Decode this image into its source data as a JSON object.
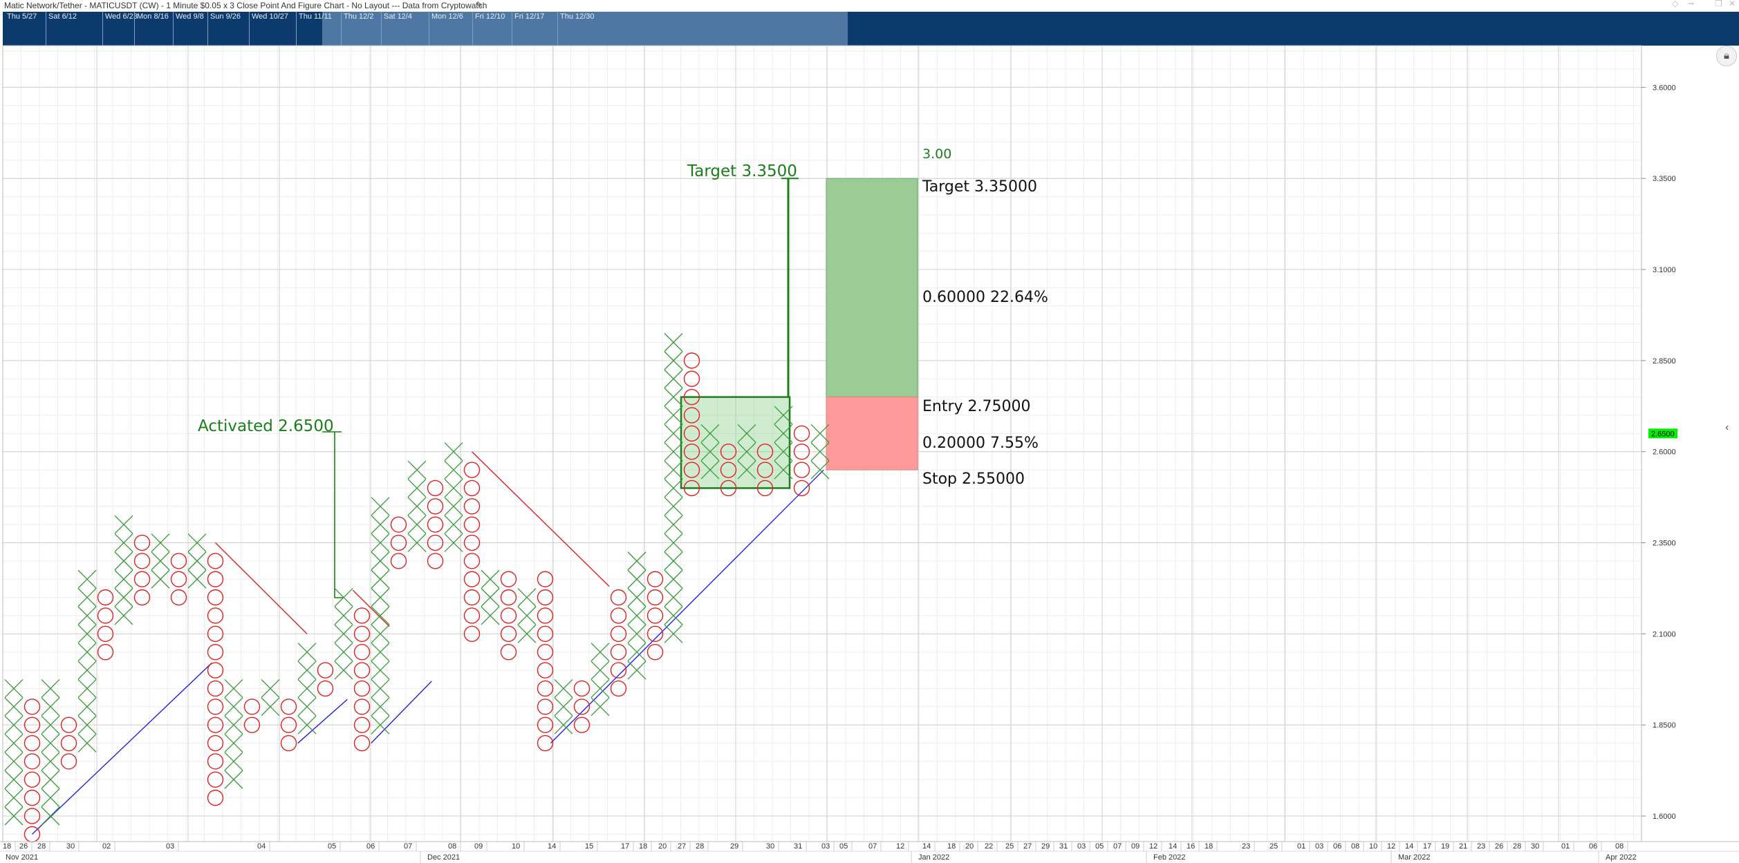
{
  "window": {
    "title": "Matic Network/Tether - MATICUSDT (CW) - 1 Minute $0.05 x 3 Close Point And Figure Chart - No Layout --- Data from Cryptowatch"
  },
  "navigator": {
    "dates": [
      "Thu 5/27",
      "Sat 6/12",
      "Wed 6/23",
      "Mon 8/16",
      "Wed 9/8",
      "Sun 9/26",
      "Wed 10/27",
      "Thu 11/11",
      "Thu 12/2",
      "Sat 12/4",
      "Mon 12/6",
      "Fri 12/10",
      "Fri 12/17",
      "Thu 12/30"
    ]
  },
  "colors": {
    "x_box": "#3a9a3a",
    "o_box": "#e02020",
    "resistance_line": "#e02020",
    "support_line": "#2020e0",
    "target_zone": "#9ccc95",
    "stop_zone": "#ff9a9a",
    "annotation": "#1a7f1a",
    "current_price_bg": "#00ee00",
    "nav_bg": "#0d3a6d",
    "nav_selection": "#4e78a3"
  },
  "chart_data": {
    "type": "point-and-figure",
    "box_size": 0.05,
    "reversal": 3,
    "ylim": [
      1.55,
      3.7
    ],
    "y_ticks": [
      "1.6000",
      "1.8500",
      "2.1000",
      "2.3500",
      "2.6000",
      "2.8500",
      "3.1000",
      "3.3500",
      "3.6000"
    ],
    "current_price": "2.6500",
    "columns": [
      {
        "type": "X",
        "low": 1.6,
        "high": 1.95
      },
      {
        "type": "O",
        "low": 1.55,
        "high": 1.9
      },
      {
        "type": "X",
        "low": 1.6,
        "high": 1.95
      },
      {
        "type": "O",
        "low": 1.75,
        "high": 1.85
      },
      {
        "type": "X",
        "low": 1.8,
        "high": 2.25
      },
      {
        "type": "O",
        "low": 2.05,
        "high": 2.2
      },
      {
        "type": "X",
        "low": 2.15,
        "high": 2.4
      },
      {
        "type": "O",
        "low": 2.2,
        "high": 2.35
      },
      {
        "type": "X",
        "low": 2.25,
        "high": 2.35
      },
      {
        "type": "O",
        "low": 2.2,
        "high": 2.3
      },
      {
        "type": "X",
        "low": 2.25,
        "high": 2.35
      },
      {
        "type": "O",
        "low": 1.65,
        "high": 2.3
      },
      {
        "type": "X",
        "low": 1.7,
        "high": 1.95
      },
      {
        "type": "O",
        "low": 1.85,
        "high": 1.9
      },
      {
        "type": "X",
        "low": 1.9,
        "high": 1.95
      },
      {
        "type": "O",
        "low": 1.8,
        "high": 1.9
      },
      {
        "type": "X",
        "low": 1.85,
        "high": 2.05
      },
      {
        "type": "O",
        "low": 1.95,
        "high": 2.0
      },
      {
        "type": "X",
        "low": 2.0,
        "high": 2.2
      },
      {
        "type": "O",
        "low": 1.8,
        "high": 2.15
      },
      {
        "type": "X",
        "low": 1.85,
        "high": 2.45
      },
      {
        "type": "O",
        "low": 2.3,
        "high": 2.4
      },
      {
        "type": "X",
        "low": 2.35,
        "high": 2.55
      },
      {
        "type": "O",
        "low": 2.3,
        "high": 2.5
      },
      {
        "type": "X",
        "low": 2.35,
        "high": 2.6
      },
      {
        "type": "O",
        "low": 2.1,
        "high": 2.55
      },
      {
        "type": "X",
        "low": 2.15,
        "high": 2.25
      },
      {
        "type": "O",
        "low": 2.05,
        "high": 2.25
      },
      {
        "type": "X",
        "low": 2.1,
        "high": 2.2
      },
      {
        "type": "O",
        "low": 1.8,
        "high": 2.25
      },
      {
        "type": "X",
        "low": 1.85,
        "high": 1.95
      },
      {
        "type": "O",
        "low": 1.85,
        "high": 1.95
      },
      {
        "type": "X",
        "low": 1.9,
        "high": 2.05
      },
      {
        "type": "O",
        "low": 1.95,
        "high": 2.2
      },
      {
        "type": "X",
        "low": 2.0,
        "high": 2.3
      },
      {
        "type": "O",
        "low": 2.05,
        "high": 2.25
      },
      {
        "type": "X",
        "low": 2.1,
        "high": 2.9
      },
      {
        "type": "O",
        "low": 2.5,
        "high": 2.85
      },
      {
        "type": "X",
        "low": 2.55,
        "high": 2.65
      },
      {
        "type": "O",
        "low": 2.5,
        "high": 2.6
      },
      {
        "type": "X",
        "low": 2.55,
        "high": 2.65
      },
      {
        "type": "O",
        "low": 2.5,
        "high": 2.6
      },
      {
        "type": "X",
        "low": 2.55,
        "high": 2.7
      },
      {
        "type": "O",
        "low": 2.5,
        "high": 2.65
      },
      {
        "type": "X",
        "low": 2.55,
        "high": 2.65
      }
    ],
    "x_ticks": [
      "18",
      "26",
      "28",
      "30",
      "02",
      "03",
      "04",
      "05",
      "06",
      "07",
      "08",
      "09",
      "10",
      "14",
      "15",
      "17",
      "18",
      "20",
      "27",
      "28",
      "29",
      "30",
      "31",
      "03",
      "05",
      "07",
      "12",
      "14",
      "18",
      "20",
      "22",
      "25",
      "27",
      "29",
      "31",
      "03",
      "05",
      "07",
      "09",
      "12",
      "14",
      "16",
      "18",
      "23",
      "25",
      "01",
      "03",
      "06",
      "08",
      "10",
      "12",
      "14",
      "17",
      "19",
      "21",
      "23",
      "26",
      "28",
      "30",
      "01",
      "06",
      "08"
    ],
    "month_labels": [
      "Nov 2021",
      "Dec 2021",
      "Jan 2022",
      "Feb 2022",
      "Mar 2022",
      "Apr 2022"
    ],
    "annotations": {
      "activated": "Activated 2.6500",
      "target_label": "Target 3.3500",
      "count": "3.00"
    },
    "risk_reward": {
      "target_price": 3.35,
      "entry_price": 2.75,
      "stop_price": 2.55,
      "target_text": "Target   3.35000",
      "reward_text": "0.60000   22.64%",
      "entry_text": "Entry   2.75000",
      "risk_text": "0.20000   7.55%",
      "stop_text": "Stop   2.55000"
    },
    "congestion_box": {
      "low": 2.5,
      "high": 2.75
    }
  }
}
